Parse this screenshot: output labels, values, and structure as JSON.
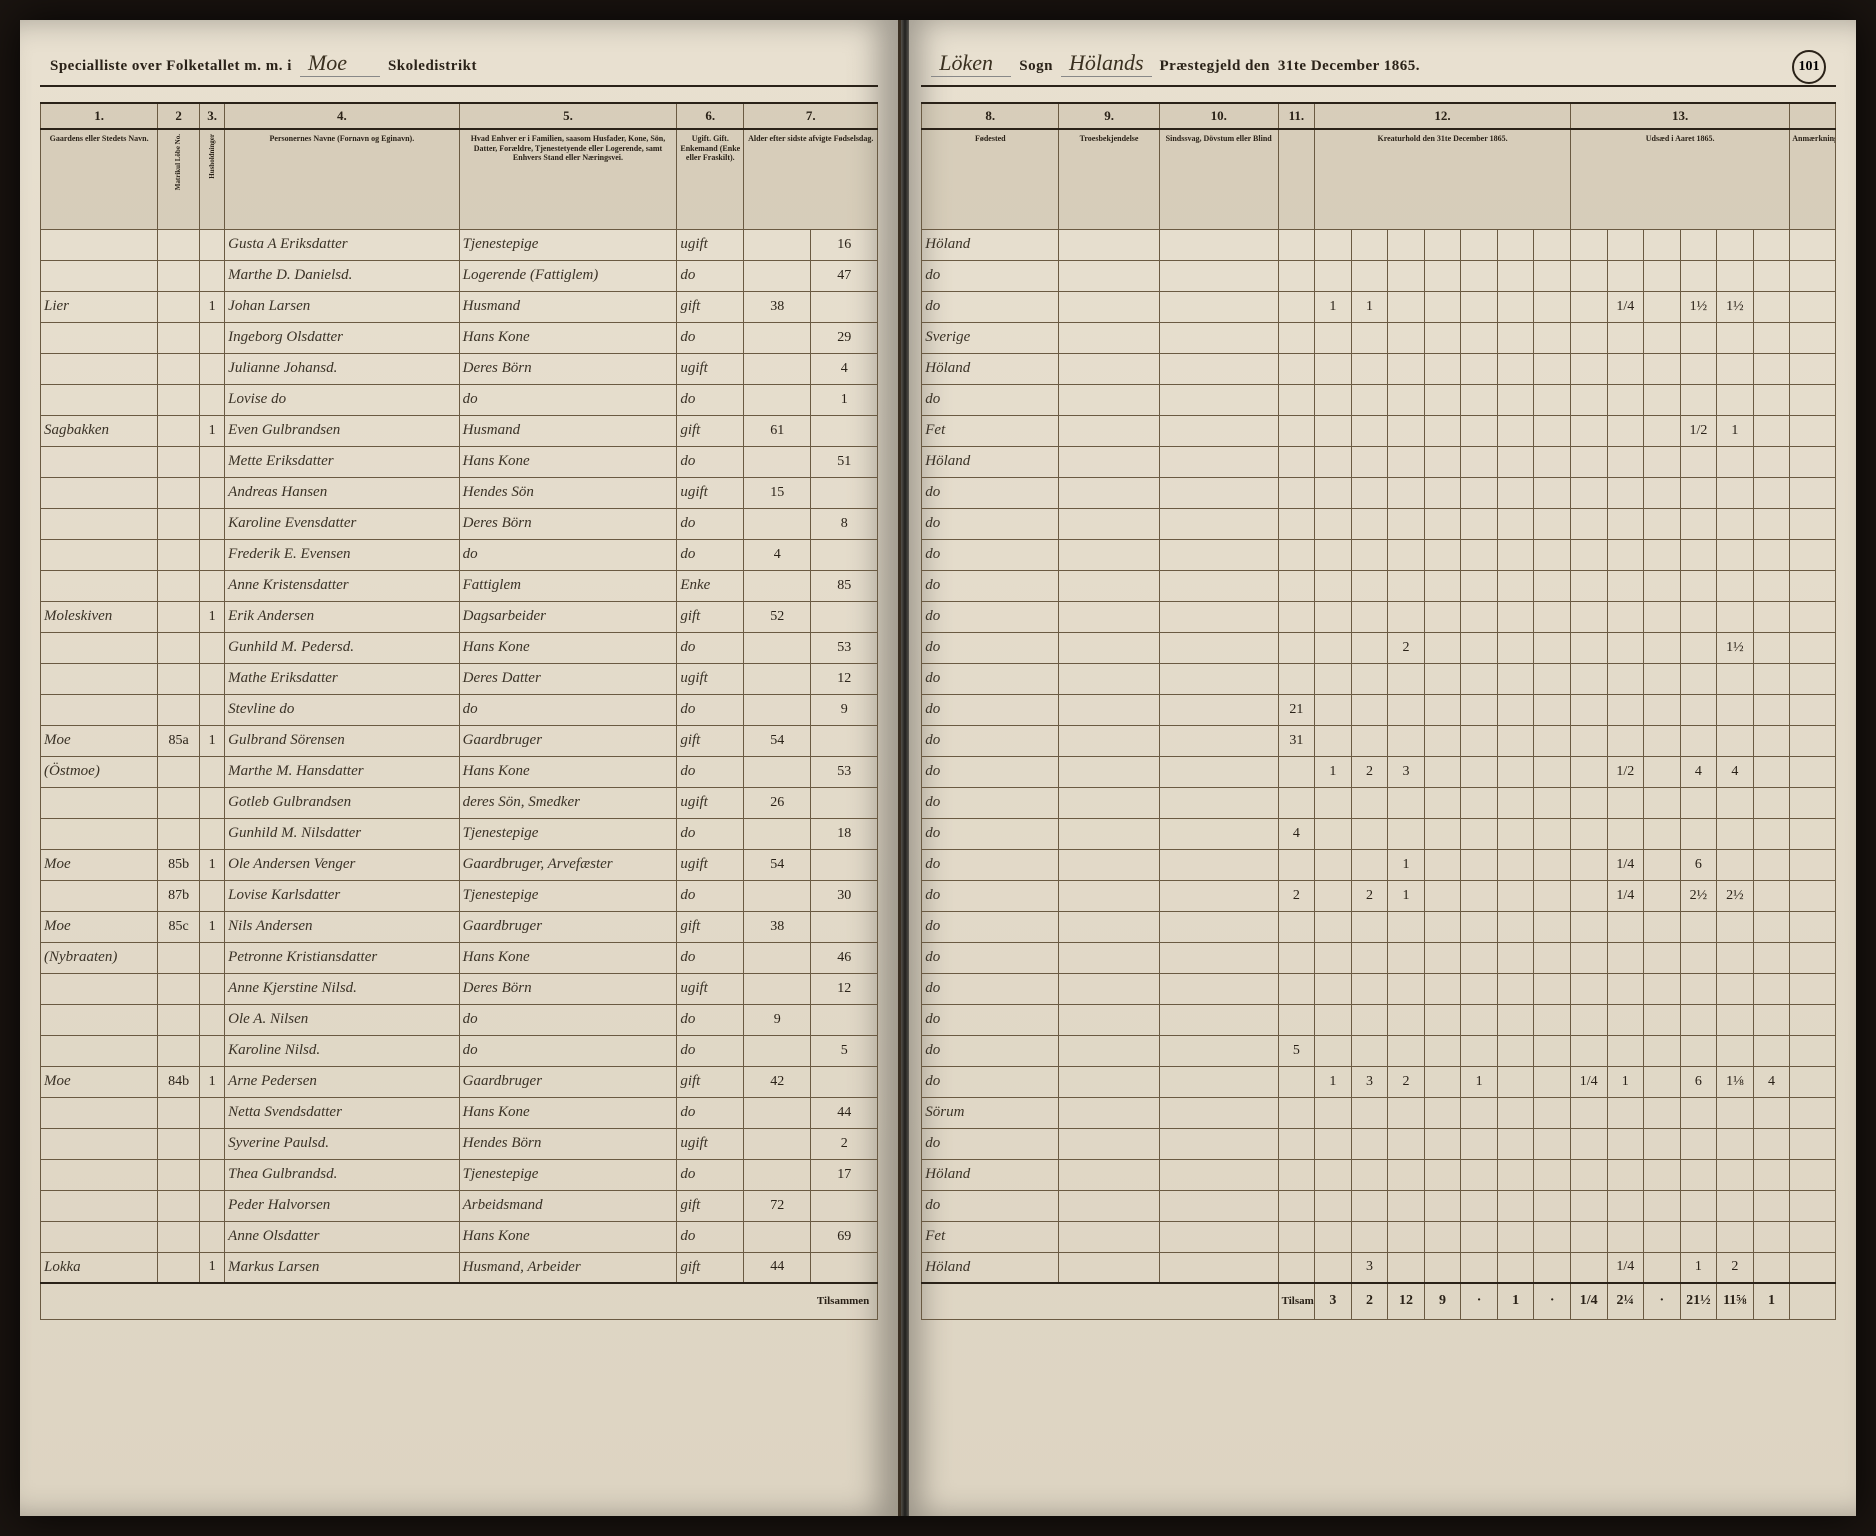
{
  "page_number": "101",
  "header": {
    "left_prefix": "Specialliste over Folketallet m. m. i",
    "district": "Moe",
    "district_label": "Skoledistrikt",
    "right_sogn": "Löken",
    "sogn_label": "Sogn",
    "prestegjeld": "Hölands",
    "prestegjeld_label": "Præstegjeld den",
    "date": "31te December 1865."
  },
  "left_columns": {
    "nums": [
      "1.",
      "2",
      "3.",
      "4.",
      "5.",
      "6.",
      "7."
    ],
    "labels": [
      "Gaardens eller Stedets Navn.",
      "Matrikul Löbe No.",
      "Husholdninger",
      "Personernes Navne (Fornavn og Eginavn).",
      "Hvad Enhver er i Familien, saasom Husfader, Kone, Sön, Datter, Forældre, Tjenestetyende eller Logerende, samt Enhvers Stand eller Næringsvei.",
      "Ugift. Gift. Enkemand (Enke eller Fraskilt).",
      "Alder efter sidste afvigte Fødselsdag."
    ]
  },
  "right_columns": {
    "nums": [
      "8.",
      "9.",
      "10.",
      "11.",
      "12.",
      "13."
    ],
    "labels": [
      "Fødested",
      "Troesbekjendelse",
      "Sindssvag, Dövstum eller Blind",
      "",
      "Kreaturhold den 31te December 1865.",
      "Udsæd i Aaret 1865."
    ]
  },
  "rows": [
    {
      "sted": "",
      "mnr": "",
      "hh": "",
      "name": "Gusta A Eriksdatter",
      "role": "Tjenestepige",
      "civ": "ugift",
      "m": "",
      "k": "16",
      "birth": "Höland",
      "col12": [
        ""
      ],
      "col13": [
        ""
      ]
    },
    {
      "sted": "",
      "mnr": "",
      "hh": "",
      "name": "Marthe D. Danielsd.",
      "role": "Logerende (Fattiglem)",
      "civ": "do",
      "m": "",
      "k": "47",
      "birth": "do",
      "col12": [
        ""
      ],
      "col13": [
        ""
      ]
    },
    {
      "sted": "Lier",
      "mnr": "",
      "hh": "1",
      "name": "Johan Larsen",
      "role": "Husmand",
      "civ": "gift",
      "m": "38",
      "k": "",
      "birth": "do",
      "col12": [
        "1",
        "1",
        "",
        "",
        "",
        "",
        ""
      ],
      "col13": [
        "",
        "1/4",
        "",
        "1½",
        "1½"
      ]
    },
    {
      "sted": "",
      "mnr": "",
      "hh": "",
      "name": "Ingeborg Olsdatter",
      "role": "Hans Kone",
      "civ": "do",
      "m": "",
      "k": "29",
      "birth": "Sverige",
      "col12": [
        ""
      ],
      "col13": [
        ""
      ]
    },
    {
      "sted": "",
      "mnr": "",
      "hh": "",
      "name": "Julianne Johansd.",
      "role": "Deres Börn",
      "civ": "ugift",
      "m": "",
      "k": "4",
      "birth": "Höland",
      "col12": [
        ""
      ],
      "col13": [
        ""
      ]
    },
    {
      "sted": "",
      "mnr": "",
      "hh": "",
      "name": "Lovise do",
      "role": "do",
      "civ": "do",
      "m": "",
      "k": "1",
      "birth": "do",
      "col12": [
        ""
      ],
      "col13": [
        ""
      ]
    },
    {
      "sted": "Sagbakken",
      "mnr": "",
      "hh": "1",
      "name": "Even Gulbrandsen",
      "role": "Husmand",
      "civ": "gift",
      "m": "61",
      "k": "",
      "birth": "Fet",
      "col12": [
        ""
      ],
      "col13": [
        "",
        "",
        "",
        "1/2",
        "1"
      ]
    },
    {
      "sted": "",
      "mnr": "",
      "hh": "",
      "name": "Mette Eriksdatter",
      "role": "Hans Kone",
      "civ": "do",
      "m": "",
      "k": "51",
      "birth": "Höland",
      "col12": [
        ""
      ],
      "col13": [
        ""
      ]
    },
    {
      "sted": "",
      "mnr": "",
      "hh": "",
      "name": "Andreas Hansen",
      "role": "Hendes Sön",
      "civ": "ugift",
      "m": "15",
      "k": "",
      "birth": "do",
      "col12": [
        ""
      ],
      "col13": [
        ""
      ]
    },
    {
      "sted": "",
      "mnr": "",
      "hh": "",
      "name": "Karoline Evensdatter",
      "role": "Deres Börn",
      "civ": "do",
      "m": "",
      "k": "8",
      "birth": "do",
      "col12": [
        ""
      ],
      "col13": [
        ""
      ]
    },
    {
      "sted": "",
      "mnr": "",
      "hh": "",
      "name": "Frederik E. Evensen",
      "role": "do",
      "civ": "do",
      "m": "4",
      "k": "",
      "birth": "do",
      "col12": [
        ""
      ],
      "col13": [
        ""
      ]
    },
    {
      "sted": "",
      "mnr": "",
      "hh": "",
      "name": "Anne Kristensdatter",
      "role": "Fattiglem",
      "civ": "Enke",
      "m": "",
      "k": "85",
      "birth": "do",
      "col12": [
        ""
      ],
      "col13": [
        ""
      ]
    },
    {
      "sted": "Moleskiven",
      "mnr": "",
      "hh": "1",
      "name": "Erik Andersen",
      "role": "Dagsarbeider",
      "civ": "gift",
      "m": "52",
      "k": "",
      "birth": "do",
      "col12": [
        ""
      ],
      "col13": [
        ""
      ]
    },
    {
      "sted": "",
      "mnr": "",
      "hh": "",
      "name": "Gunhild M. Pedersd.",
      "role": "Hans Kone",
      "civ": "do",
      "m": "",
      "k": "53",
      "birth": "do",
      "col12": [
        "",
        "",
        "2"
      ],
      "col13": [
        "",
        "",
        "",
        "",
        "1½"
      ]
    },
    {
      "sted": "",
      "mnr": "",
      "hh": "",
      "name": "Mathe Eriksdatter",
      "role": "Deres Datter",
      "civ": "ugift",
      "m": "",
      "k": "12",
      "birth": "do",
      "col12": [
        ""
      ],
      "col13": [
        ""
      ]
    },
    {
      "sted": "",
      "mnr": "",
      "hh": "",
      "name": "Stevline do",
      "role": "do",
      "civ": "do",
      "m": "",
      "k": "9",
      "birth": "do",
      "col11": "21",
      "col12": [
        ""
      ],
      "col13": [
        ""
      ]
    },
    {
      "sted": "Moe",
      "mnr": "85a",
      "hh": "1",
      "name": "Gulbrand Sörensen",
      "role": "Gaardbruger",
      "civ": "gift",
      "m": "54",
      "k": "",
      "birth": "do",
      "col11": "31",
      "col12": [
        ""
      ],
      "col13": [
        ""
      ]
    },
    {
      "sted": "(Östmoe)",
      "mnr": "",
      "hh": "",
      "name": "Marthe M. Hansdatter",
      "role": "Hans Kone",
      "civ": "do",
      "m": "",
      "k": "53",
      "birth": "do",
      "col12": [
        "1",
        "2",
        "3",
        "",
        "",
        "",
        ""
      ],
      "col13": [
        "",
        "1/2",
        "",
        "4",
        "4"
      ]
    },
    {
      "sted": "",
      "mnr": "",
      "hh": "",
      "name": "Gotleb Gulbrandsen",
      "role": "deres Sön, Smedker",
      "civ": "ugift",
      "m": "26",
      "k": "",
      "birth": "do",
      "col12": [
        ""
      ],
      "col13": [
        ""
      ]
    },
    {
      "sted": "",
      "mnr": "",
      "hh": "",
      "name": "Gunhild M. Nilsdatter",
      "role": "Tjenestepige",
      "civ": "do",
      "m": "",
      "k": "18",
      "birth": "do",
      "col11": "4",
      "col12": [
        ""
      ],
      "col13": [
        ""
      ]
    },
    {
      "sted": "Moe",
      "mnr": "85b",
      "hh": "1",
      "name": "Ole Andersen Venger",
      "role": "Gaardbruger, Arvefæster",
      "civ": "ugift",
      "m": "54",
      "k": "",
      "birth": "do",
      "col12": [
        "",
        "",
        "1"
      ],
      "col13": [
        "",
        "1/4",
        "",
        "6",
        ""
      ]
    },
    {
      "sted": "",
      "mnr": "87b",
      "hh": "",
      "name": "Lovise Karlsdatter",
      "role": "Tjenestepige",
      "civ": "do",
      "m": "",
      "k": "30",
      "birth": "do",
      "col11": "2",
      "col12": [
        "",
        "2",
        "1"
      ],
      "col13": [
        "",
        "1/4",
        "",
        "2½",
        "2½"
      ]
    },
    {
      "sted": "Moe",
      "mnr": "85c",
      "hh": "1",
      "name": "Nils Andersen",
      "role": "Gaardbruger",
      "civ": "gift",
      "m": "38",
      "k": "",
      "birth": "do",
      "col12": [
        ""
      ],
      "col13": [
        ""
      ]
    },
    {
      "sted": "(Nybraaten)",
      "mnr": "",
      "hh": "",
      "name": "Petronne Kristiansdatter",
      "role": "Hans Kone",
      "civ": "do",
      "m": "",
      "k": "46",
      "birth": "do",
      "col12": [
        ""
      ],
      "col13": [
        ""
      ]
    },
    {
      "sted": "",
      "mnr": "",
      "hh": "",
      "name": "Anne Kjerstine Nilsd.",
      "role": "Deres Börn",
      "civ": "ugift",
      "m": "",
      "k": "12",
      "birth": "do",
      "col12": [
        ""
      ],
      "col13": [
        ""
      ]
    },
    {
      "sted": "",
      "mnr": "",
      "hh": "",
      "name": "Ole A. Nilsen",
      "role": "do",
      "civ": "do",
      "m": "9",
      "k": "",
      "birth": "do",
      "col12": [
        ""
      ],
      "col13": [
        ""
      ]
    },
    {
      "sted": "",
      "mnr": "",
      "hh": "",
      "name": "Karoline Nilsd.",
      "role": "do",
      "civ": "do",
      "m": "",
      "k": "5",
      "birth": "do",
      "col11": "5",
      "col12": [
        ""
      ],
      "col13": [
        ""
      ]
    },
    {
      "sted": "Moe",
      "mnr": "84b",
      "hh": "1",
      "name": "Arne Pedersen",
      "role": "Gaardbruger",
      "civ": "gift",
      "m": "42",
      "k": "",
      "birth": "do",
      "col12": [
        "1",
        "3",
        "2",
        "",
        "1",
        "",
        ""
      ],
      "col13": [
        "1/4",
        "1",
        "",
        "6",
        "1⅛",
        "4"
      ]
    },
    {
      "sted": "",
      "mnr": "",
      "hh": "",
      "name": "Netta Svendsdatter",
      "role": "Hans Kone",
      "civ": "do",
      "m": "",
      "k": "44",
      "birth": "Sörum",
      "col12": [
        ""
      ],
      "col13": [
        ""
      ]
    },
    {
      "sted": "",
      "mnr": "",
      "hh": "",
      "name": "Syverine Paulsd.",
      "role": "Hendes Börn",
      "civ": "ugift",
      "m": "",
      "k": "2",
      "birth": "do",
      "col12": [
        ""
      ],
      "col13": [
        ""
      ]
    },
    {
      "sted": "",
      "mnr": "",
      "hh": "",
      "name": "Thea Gulbrandsd.",
      "role": "Tjenestepige",
      "civ": "do",
      "m": "",
      "k": "17",
      "birth": "Höland",
      "col12": [
        ""
      ],
      "col13": [
        ""
      ]
    },
    {
      "sted": "",
      "mnr": "",
      "hh": "",
      "name": "Peder Halvorsen",
      "role": "Arbeidsmand",
      "civ": "gift",
      "m": "72",
      "k": "",
      "birth": "do",
      "col12": [
        ""
      ],
      "col13": [
        ""
      ]
    },
    {
      "sted": "",
      "mnr": "",
      "hh": "",
      "name": "Anne Olsdatter",
      "role": "Hans Kone",
      "civ": "do",
      "m": "",
      "k": "69",
      "birth": "Fet",
      "col12": [
        ""
      ],
      "col13": [
        ""
      ]
    },
    {
      "sted": "Lokka",
      "mnr": "",
      "hh": "1",
      "name": "Markus Larsen",
      "role": "Husmand, Arbeider",
      "civ": "gift",
      "m": "44",
      "k": "",
      "birth": "Höland",
      "col12": [
        "",
        "3"
      ],
      "col13": [
        "",
        "1/4",
        "",
        "1",
        "2"
      ]
    }
  ],
  "footer": {
    "left_label": "Tilsammen",
    "right_label": "Tilsammen",
    "totals12": [
      "3",
      "2",
      "12",
      "9",
      "·",
      "1",
      "·"
    ],
    "totals13": [
      "1/4",
      "2¼",
      "·",
      "21½",
      "11⅝",
      "1"
    ]
  },
  "colors": {
    "paper": "#e2dac8",
    "ink": "#2a2218",
    "rule": "#6a5a42",
    "script": "#3a3226"
  }
}
